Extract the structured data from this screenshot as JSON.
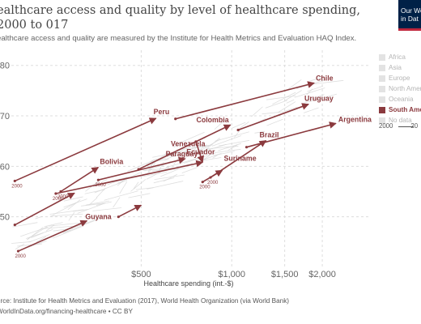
{
  "header": {
    "title": "ealthcare access and quality by level of healthcare spending, 2000 to 017",
    "subtitle": "ealthcare access and quality are measured by the Institute for Health Metrics and Evaluation HAQ Index."
  },
  "logo": {
    "line1": "Our Wo",
    "line2": "in Dat",
    "colors": {
      "background": "#002147",
      "accent": "#c0273d"
    }
  },
  "legend": {
    "items": [
      {
        "label": "Africa",
        "active": false
      },
      {
        "label": "Asia",
        "active": false
      },
      {
        "label": "Europe",
        "active": false
      },
      {
        "label": "North Amer",
        "active": false
      },
      {
        "label": "Oceania",
        "active": false
      },
      {
        "label": "South Ame",
        "active": true
      },
      {
        "label": "No data",
        "active": false
      }
    ],
    "scale_start": "2000",
    "scale_end": "20"
  },
  "footer": {
    "source": "urce: Institute for Health Metrics and Evaluation (2017), World Health Organization (via World Bank)",
    "url": "WorldInData.org/financing-healthcare • CC BY"
  },
  "chart_data": {
    "type": "scatter",
    "title": "ealthcare access and quality by level of healthcare spending, 2000 to 017",
    "xlabel": "Healthcare spending (int.-$)",
    "ylabel": "",
    "x_scale": "log",
    "xlim": [
      185,
      2900
    ],
    "ylim": [
      40,
      83
    ],
    "x_ticks": [
      {
        "value": 500,
        "label": "$500"
      },
      {
        "value": 1000,
        "label": "$1,000"
      },
      {
        "value": 1500,
        "label": "$1,500"
      },
      {
        "value": 2000,
        "label": "$2,000"
      }
    ],
    "y_ticks": [
      {
        "value": 50,
        "label": "50"
      },
      {
        "value": 60,
        "label": "60"
      },
      {
        "value": 70,
        "label": "70"
      },
      {
        "value": 80,
        "label": "80"
      }
    ],
    "grid": true,
    "highlight_color": "#8b3a3e",
    "background_color": "#dddddd",
    "start_year_label": "2000",
    "series": [
      {
        "name": "Chile",
        "x0": 650,
        "y0": 69.4,
        "x1": 1880,
        "y1": 76.5,
        "show_start_year": false
      },
      {
        "name": "Uruguay",
        "x0": 1050,
        "y0": 67.2,
        "x1": 1800,
        "y1": 72.3,
        "show_start_year": false
      },
      {
        "name": "Argentina",
        "x0": 1120,
        "y0": 63.8,
        "x1": 2220,
        "y1": 68.5,
        "show_start_year": false
      },
      {
        "name": "Peru",
        "x0": 190,
        "y0": 57.1,
        "x1": 560,
        "y1": 69.5,
        "show_start_year": true
      },
      {
        "name": "Colombia",
        "x0": 490,
        "y0": 59.4,
        "x1": 990,
        "y1": 68.2,
        "show_start_year": false
      },
      {
        "name": "Brazil",
        "x0": 850,
        "y0": 57.8,
        "x1": 1300,
        "y1": 65.1,
        "show_start_year": true
      },
      {
        "name": "Venezuela",
        "x0": 760,
        "y0": 64.9,
        "x1": 800,
        "y1": 60.8,
        "show_start_year": false
      },
      {
        "name": "Ecuador",
        "x0": 260,
        "y0": 54.6,
        "x1": 800,
        "y1": 60.8,
        "show_start_year": true
      },
      {
        "name": "Paraguay",
        "x0": 360,
        "y0": 57.3,
        "x1": 700,
        "y1": 61.5,
        "show_start_year": true
      },
      {
        "name": "Bolivia",
        "x0": 270,
        "y0": 55.0,
        "x1": 360,
        "y1": 59.8,
        "show_start_year": true
      },
      {
        "name": "Suriname",
        "x0": 800,
        "y0": 56.9,
        "x1": 930,
        "y1": 59.2,
        "show_start_year": true
      },
      {
        "name": "Guyana",
        "x0": 195,
        "y0": 43.2,
        "x1": 330,
        "y1": 49.2,
        "show_start_year": true
      },
      {
        "name": "",
        "x0": 190,
        "y0": 48.4,
        "x1": 300,
        "y1": 54.7,
        "show_start_year": false
      },
      {
        "name": "",
        "x0": 420,
        "y0": 50.0,
        "x1": 500,
        "y1": 52.3,
        "show_start_year": false
      }
    ]
  }
}
